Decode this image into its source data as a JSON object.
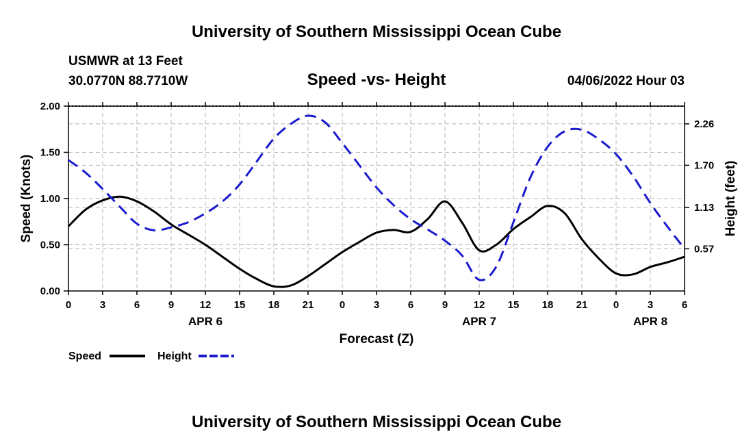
{
  "header": {
    "title": "University of Southern Mississippi Ocean Cube",
    "station": "USMWR at 13 Feet",
    "coords": "30.0770N  88.7710W",
    "subtitle": "Speed -vs- Height",
    "timestamp": "04/06/2022 Hour 03",
    "footer_title": "University of Southern Mississippi Ocean Cube"
  },
  "colors": {
    "speed": "#000000",
    "height": "#1a1acc",
    "grid": "#b4b4b4"
  },
  "chart_data": {
    "type": "line",
    "title": "Speed -vs- Height",
    "xlabel": "Forecast (Z)",
    "ylabel_left": "Speed (Knots)",
    "ylabel_right": "Height (feet)",
    "x_range_hours": [
      0,
      54
    ],
    "x_ticks": [
      {
        "h": 0,
        "label": "0"
      },
      {
        "h": 3,
        "label": "3"
      },
      {
        "h": 6,
        "label": "6"
      },
      {
        "h": 9,
        "label": "9"
      },
      {
        "h": 12,
        "label": "12"
      },
      {
        "h": 15,
        "label": "15"
      },
      {
        "h": 18,
        "label": "18"
      },
      {
        "h": 21,
        "label": "21"
      },
      {
        "h": 24,
        "label": "0"
      },
      {
        "h": 27,
        "label": "3"
      },
      {
        "h": 30,
        "label": "6"
      },
      {
        "h": 33,
        "label": "9"
      },
      {
        "h": 36,
        "label": "12"
      },
      {
        "h": 39,
        "label": "15"
      },
      {
        "h": 42,
        "label": "18"
      },
      {
        "h": 45,
        "label": "21"
      },
      {
        "h": 48,
        "label": "0"
      },
      {
        "h": 51,
        "label": "3"
      },
      {
        "h": 54,
        "label": "6"
      }
    ],
    "date_labels": [
      {
        "h": 12,
        "label": "APR 6"
      },
      {
        "h": 36,
        "label": "APR 7"
      },
      {
        "h": 51,
        "label": "APR 8"
      }
    ],
    "y_left": {
      "range": [
        0,
        2.0
      ],
      "ticks": [
        0.0,
        0.5,
        1.0,
        1.5,
        2.0
      ],
      "tick_labels": [
        "0.00",
        "0.50",
        "1.00",
        "1.50",
        "2.00"
      ]
    },
    "y_right": {
      "range": [
        0,
        2.5
      ],
      "ticks": [
        0.57,
        1.13,
        1.7,
        2.26
      ],
      "tick_labels": [
        "0.57",
        "1.13",
        "1.70",
        "2.26"
      ]
    },
    "grid": true,
    "legend": {
      "position": "bottom-left",
      "entries": [
        "Speed",
        "Height"
      ]
    },
    "series": [
      {
        "name": "Speed",
        "axis": "left",
        "style": "solid",
        "x": [
          0,
          1.5,
          3,
          4.5,
          6,
          7.5,
          9,
          10.5,
          12,
          13.5,
          15,
          16.5,
          18,
          19.5,
          21,
          22.5,
          24,
          25.5,
          27,
          28.5,
          30,
          31.5,
          33,
          34.5,
          36,
          37.5,
          39,
          40.5,
          42,
          43.5,
          45,
          46.5,
          48,
          49.5,
          51,
          52.5,
          54
        ],
        "values": [
          0.7,
          0.88,
          0.98,
          1.02,
          0.97,
          0.86,
          0.72,
          0.61,
          0.5,
          0.37,
          0.24,
          0.13,
          0.05,
          0.06,
          0.16,
          0.29,
          0.42,
          0.53,
          0.63,
          0.66,
          0.64,
          0.78,
          0.97,
          0.74,
          0.44,
          0.5,
          0.67,
          0.8,
          0.92,
          0.84,
          0.56,
          0.35,
          0.19,
          0.18,
          0.26,
          0.31,
          0.37
        ]
      },
      {
        "name": "Height",
        "axis": "right",
        "style": "dashed",
        "x": [
          0,
          1.5,
          3,
          4.5,
          6,
          7.5,
          9,
          10.5,
          12,
          13.5,
          15,
          16.5,
          18,
          19.5,
          21,
          22.5,
          24,
          25.5,
          27,
          28.5,
          30,
          31.5,
          33,
          34.5,
          36,
          37.5,
          39,
          40.5,
          42,
          43.5,
          45,
          46.5,
          48,
          49.5,
          51,
          52.5,
          54
        ],
        "values": [
          1.77,
          1.6,
          1.38,
          1.14,
          0.91,
          0.82,
          0.86,
          0.93,
          1.05,
          1.21,
          1.44,
          1.75,
          2.06,
          2.26,
          2.37,
          2.28,
          2.0,
          1.7,
          1.4,
          1.16,
          0.97,
          0.83,
          0.68,
          0.48,
          0.15,
          0.33,
          0.93,
          1.54,
          1.95,
          2.16,
          2.18,
          2.05,
          1.85,
          1.55,
          1.19,
          0.87,
          0.57
        ]
      }
    ]
  }
}
